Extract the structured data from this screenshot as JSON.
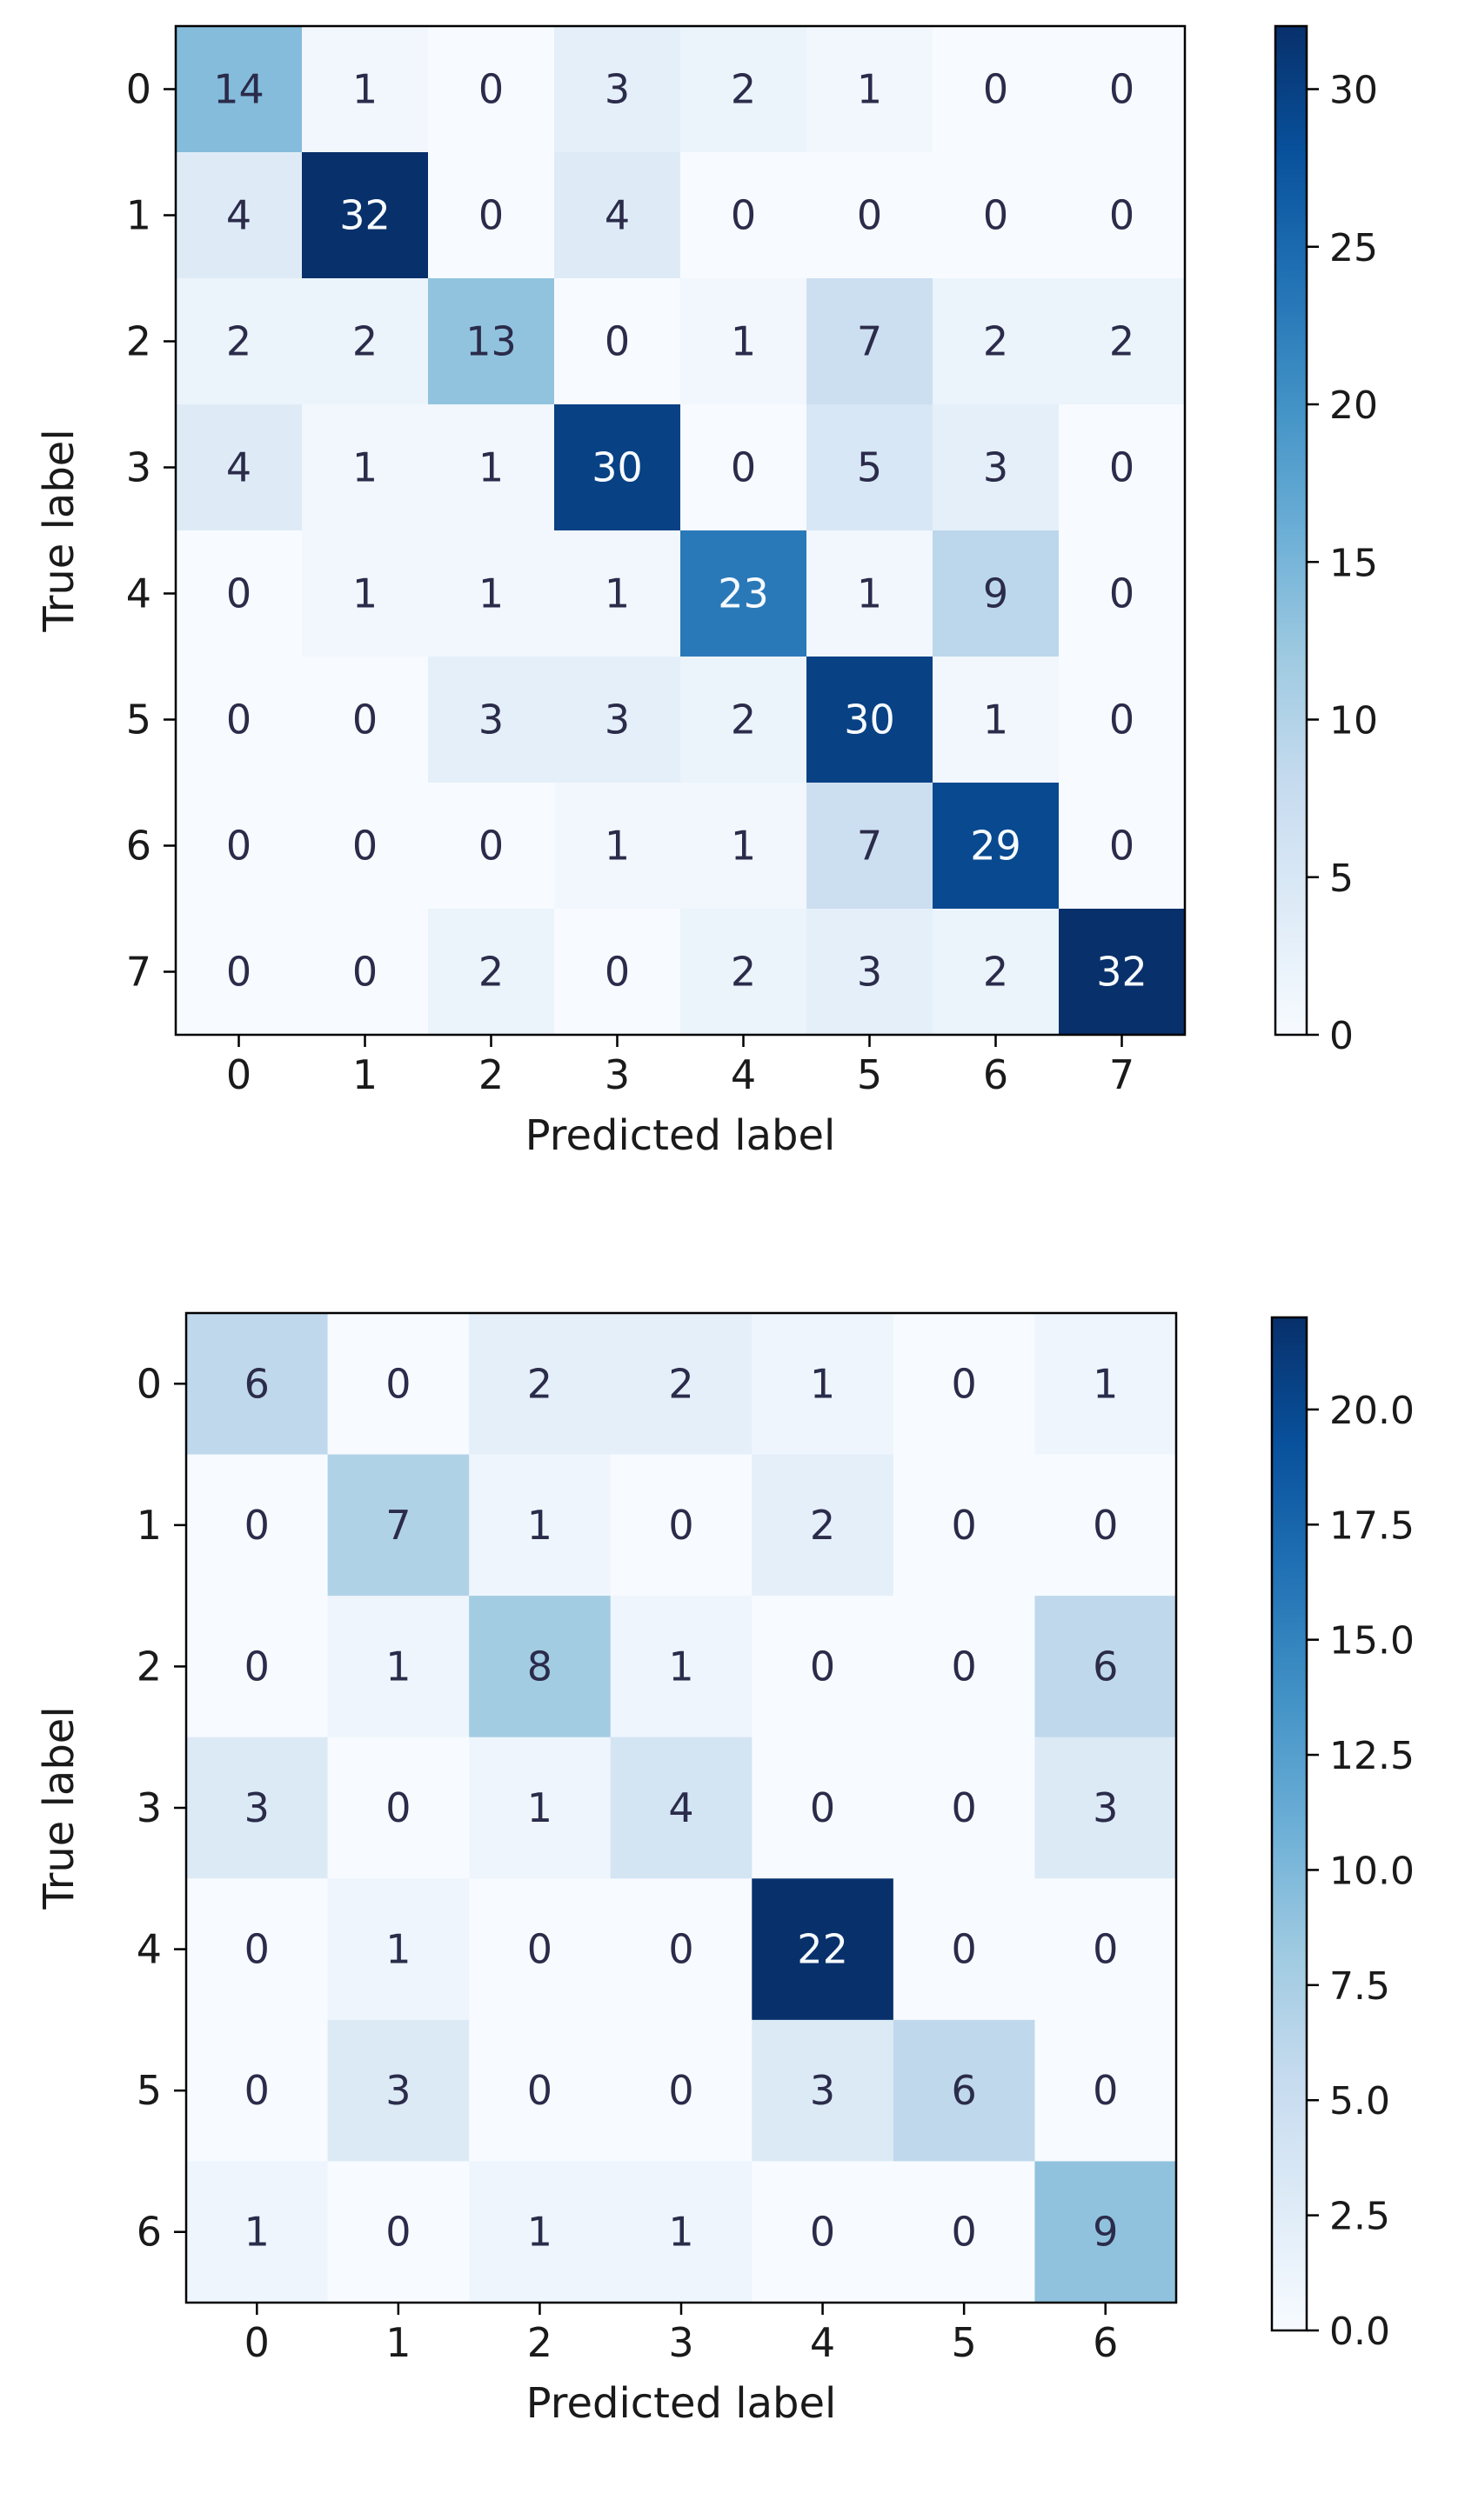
{
  "chart_data": [
    {
      "type": "heatmap",
      "colormap": "Blues",
      "xlabel": "Predicted label",
      "ylabel": "True label",
      "x_categories": [
        "0",
        "1",
        "2",
        "3",
        "4",
        "5",
        "6",
        "7"
      ],
      "y_categories": [
        "0",
        "1",
        "2",
        "3",
        "4",
        "5",
        "6",
        "7"
      ],
      "values": [
        [
          14,
          1,
          0,
          3,
          2,
          1,
          0,
          0
        ],
        [
          4,
          32,
          0,
          4,
          0,
          0,
          0,
          0
        ],
        [
          2,
          2,
          13,
          0,
          1,
          7,
          2,
          2
        ],
        [
          4,
          1,
          1,
          30,
          0,
          5,
          3,
          0
        ],
        [
          0,
          1,
          1,
          1,
          23,
          1,
          9,
          0
        ],
        [
          0,
          0,
          3,
          3,
          2,
          30,
          1,
          0
        ],
        [
          0,
          0,
          0,
          1,
          1,
          7,
          29,
          0
        ],
        [
          0,
          0,
          2,
          0,
          2,
          3,
          2,
          32
        ]
      ],
      "colorbar": {
        "range": [
          0,
          32
        ],
        "ticks": [
          0,
          5,
          10,
          15,
          20,
          25,
          30
        ],
        "tick_labels": [
          "0",
          "5",
          "10",
          "15",
          "20",
          "25",
          "30"
        ]
      }
    },
    {
      "type": "heatmap",
      "colormap": "Blues",
      "xlabel": "Predicted label",
      "ylabel": "True label",
      "x_categories": [
        "0",
        "1",
        "2",
        "3",
        "4",
        "5",
        "6"
      ],
      "y_categories": [
        "0",
        "1",
        "2",
        "3",
        "4",
        "5",
        "6"
      ],
      "values": [
        [
          6,
          0,
          2,
          2,
          1,
          0,
          1
        ],
        [
          0,
          7,
          1,
          0,
          2,
          0,
          0
        ],
        [
          0,
          1,
          8,
          1,
          0,
          0,
          6
        ],
        [
          3,
          0,
          1,
          4,
          0,
          0,
          3
        ],
        [
          0,
          1,
          0,
          0,
          22,
          0,
          0
        ],
        [
          0,
          3,
          0,
          0,
          3,
          6,
          0
        ],
        [
          1,
          0,
          1,
          1,
          0,
          0,
          9
        ]
      ],
      "colorbar": {
        "range": [
          0,
          22
        ],
        "ticks": [
          0,
          2.5,
          5,
          7.5,
          10,
          12.5,
          15,
          17.5,
          20
        ],
        "tick_labels": [
          "0.0",
          "2.5",
          "5.0",
          "7.5",
          "10.0",
          "12.5",
          "15.0",
          "17.5",
          "20.0"
        ]
      }
    }
  ]
}
